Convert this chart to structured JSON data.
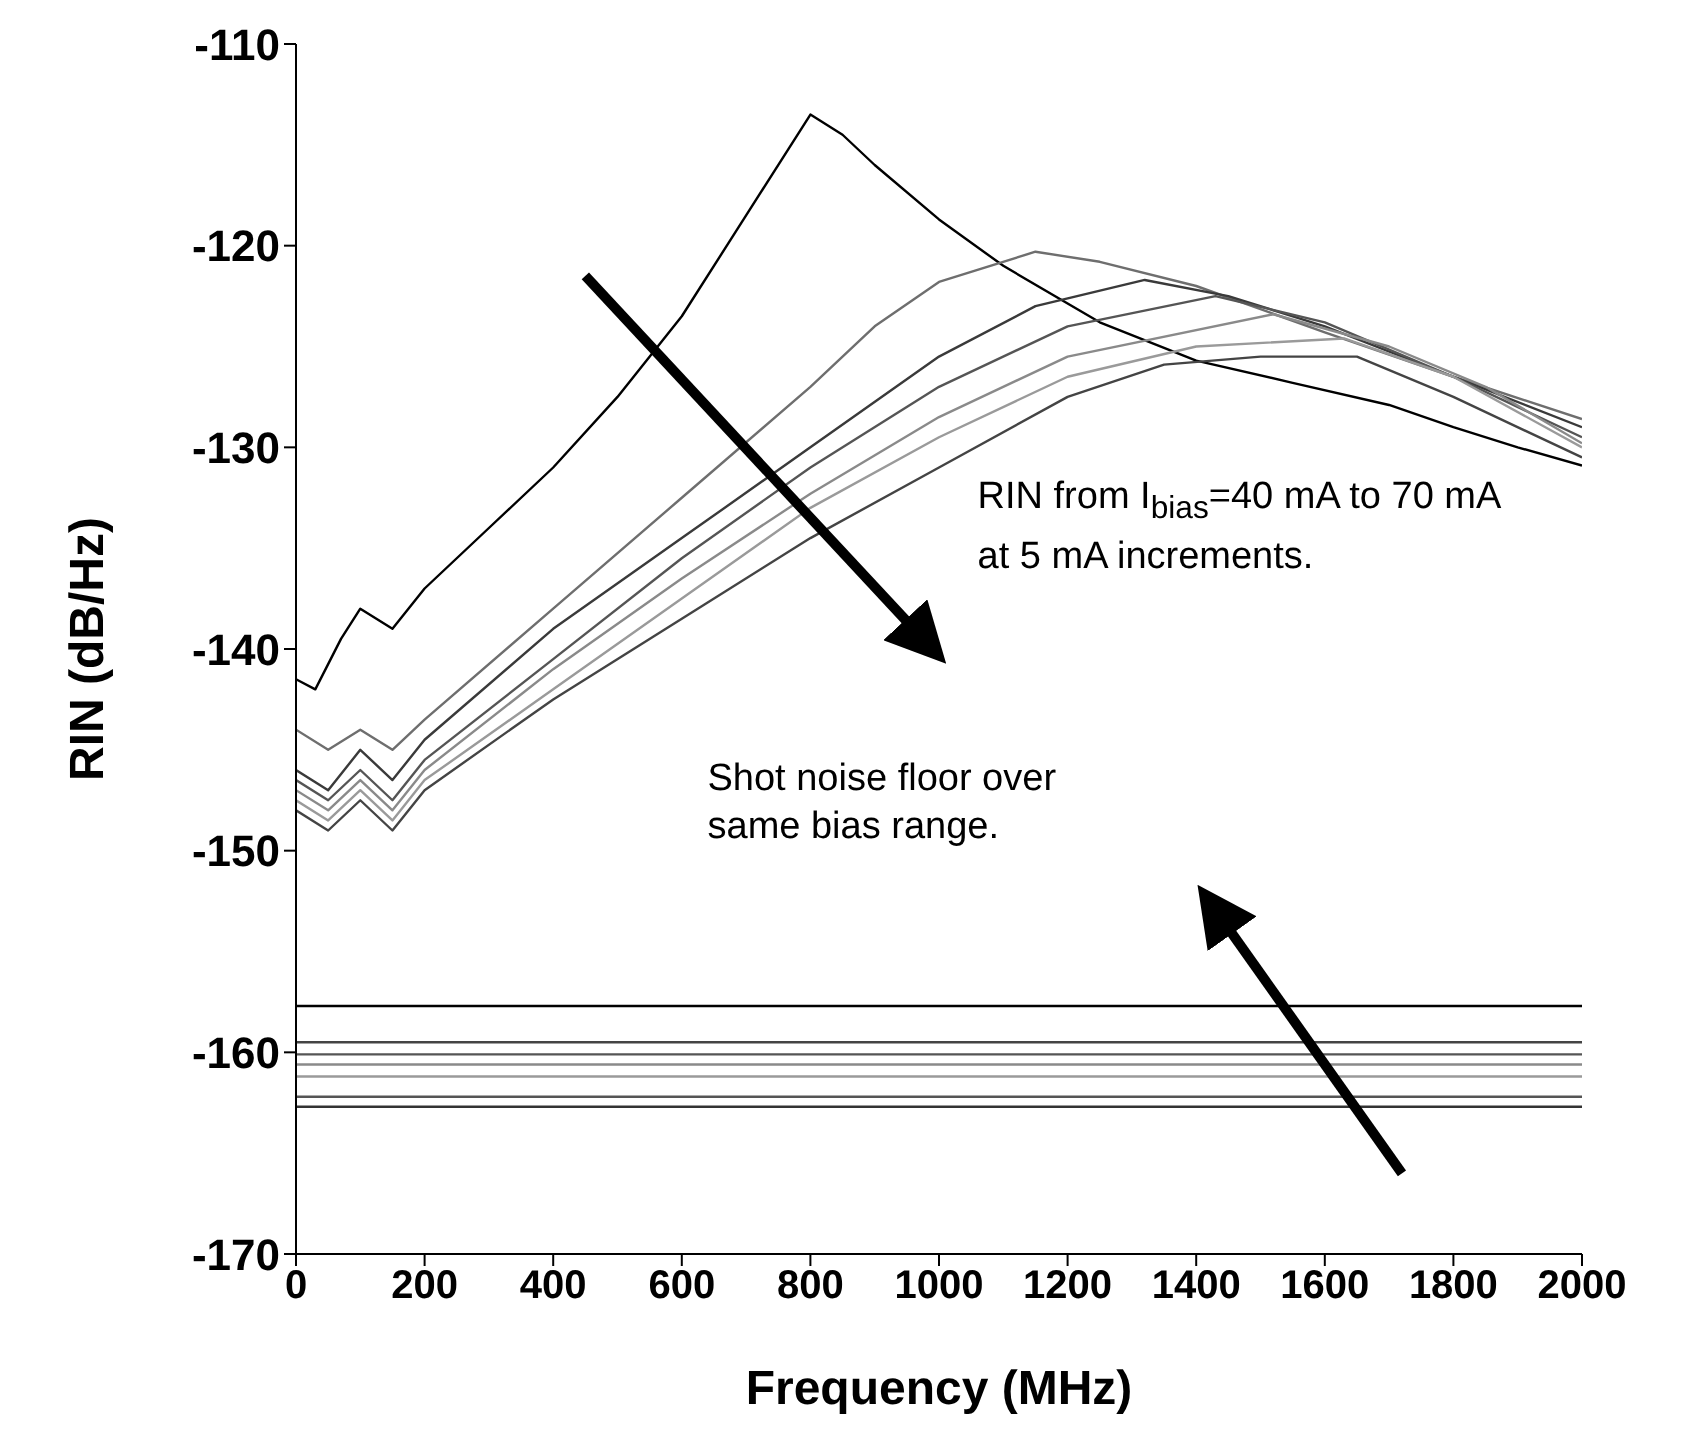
{
  "chart_data": {
    "type": "line",
    "xlabel": "Frequency (MHz)",
    "ylabel": "RIN (dB/Hz)",
    "xlim": [
      0,
      2000
    ],
    "xticks": [
      0,
      200,
      400,
      600,
      800,
      1000,
      1200,
      1400,
      1600,
      1800,
      2000
    ],
    "ylim": [
      -170,
      -110
    ],
    "yticks": [
      -170,
      -160,
      -150,
      -140,
      -130,
      -120,
      -110
    ],
    "marker": "none",
    "line_style": "solid",
    "annotations": [
      "RIN from I$_{bias}$=40 mA to 70 mA at 5 mA increments.",
      "Shot noise floor over same bias range."
    ],
    "series": [
      {
        "color": "#000000",
        "x": [
          0,
          30,
          70,
          100,
          150,
          200,
          300,
          400,
          500,
          600,
          700,
          800,
          850,
          900,
          1000,
          1100,
          1250,
          1400,
          1550,
          1700,
          1800,
          1900,
          2000
        ],
        "values": [
          -141.5,
          -142,
          -139.5,
          -138,
          -139,
          -137,
          -134,
          -131,
          -127.5,
          -123.5,
          -118.5,
          -113.5,
          -114.5,
          -116,
          -118.7,
          -121,
          -123.8,
          -125.7,
          -126.8,
          -127.9,
          -129,
          -130,
          -130.9
        ]
      },
      {
        "color": "#6e6e6e",
        "x": [
          0,
          50,
          100,
          150,
          200,
          400,
          600,
          800,
          900,
          1000,
          1150,
          1250,
          1400,
          1600,
          1800,
          2000
        ],
        "values": [
          -144,
          -145,
          -144,
          -145,
          -143.5,
          -138,
          -132.5,
          -127,
          -124,
          -121.8,
          -120.3,
          -120.8,
          -122,
          -124.3,
          -126.5,
          -128.6
        ]
      },
      {
        "color": "#3a3a3a",
        "x": [
          0,
          50,
          100,
          150,
          200,
          400,
          600,
          800,
          1000,
          1150,
          1320,
          1450,
          1600,
          1800,
          2000
        ],
        "values": [
          -146,
          -147,
          -145,
          -146.5,
          -144.5,
          -139,
          -134.5,
          -130,
          -125.5,
          -123,
          -121.7,
          -122.5,
          -124,
          -126.5,
          -129
        ]
      },
      {
        "color": "#555555",
        "x": [
          0,
          50,
          100,
          150,
          200,
          400,
          600,
          800,
          1000,
          1200,
          1430,
          1600,
          1800,
          2000
        ],
        "values": [
          -146.5,
          -147.5,
          -146,
          -147.5,
          -145.5,
          -140.5,
          -135.5,
          -131,
          -127,
          -124,
          -122.5,
          -123.8,
          -126.5,
          -129.5
        ]
      },
      {
        "color": "#8a8a8a",
        "x": [
          0,
          50,
          100,
          150,
          200,
          400,
          600,
          800,
          1000,
          1200,
          1520,
          1700,
          1850,
          2000
        ],
        "values": [
          -147,
          -148,
          -146.5,
          -148,
          -146,
          -141,
          -136.5,
          -132.3,
          -128.5,
          -125.5,
          -123.4,
          -125,
          -127,
          -129.8
        ]
      },
      {
        "color": "#9a9a9a",
        "x": [
          0,
          50,
          100,
          150,
          200,
          400,
          600,
          800,
          1000,
          1200,
          1400,
          1630,
          1800,
          2000
        ],
        "values": [
          -147.5,
          -148.5,
          -147,
          -148.5,
          -146.5,
          -142,
          -137.5,
          -133,
          -129.5,
          -126.5,
          -125,
          -124.6,
          -126.5,
          -130
        ]
      },
      {
        "color": "#444444",
        "x": [
          0,
          50,
          100,
          150,
          200,
          400,
          600,
          800,
          1000,
          1200,
          1350,
          1500,
          1650,
          1800,
          2000
        ],
        "values": [
          -148,
          -149,
          -147.5,
          -149,
          -147,
          -142.5,
          -138.5,
          -134.5,
          -131,
          -127.5,
          -125.9,
          -125.5,
          -125.5,
          -127.5,
          -130.5
        ]
      },
      {
        "color": "#000000",
        "x": [
          0,
          2000
        ],
        "values": [
          -157.7,
          -157.7
        ]
      },
      {
        "color": "#444444",
        "x": [
          0,
          2000
        ],
        "values": [
          -159.5,
          -159.5
        ]
      },
      {
        "color": "#555555",
        "x": [
          0,
          2000
        ],
        "values": [
          -160.1,
          -160.1
        ]
      },
      {
        "color": "#8a8a8a",
        "x": [
          0,
          2000
        ],
        "values": [
          -160.6,
          -160.6
        ]
      },
      {
        "color": "#9a9a9a",
        "x": [
          0,
          2000
        ],
        "values": [
          -161.2,
          -161.2
        ]
      },
      {
        "color": "#555555",
        "x": [
          0,
          2000
        ],
        "values": [
          -162.2,
          -162.2
        ]
      },
      {
        "color": "#333333",
        "x": [
          0,
          2000
        ],
        "values": [
          -162.7,
          -162.7
        ]
      }
    ]
  }
}
